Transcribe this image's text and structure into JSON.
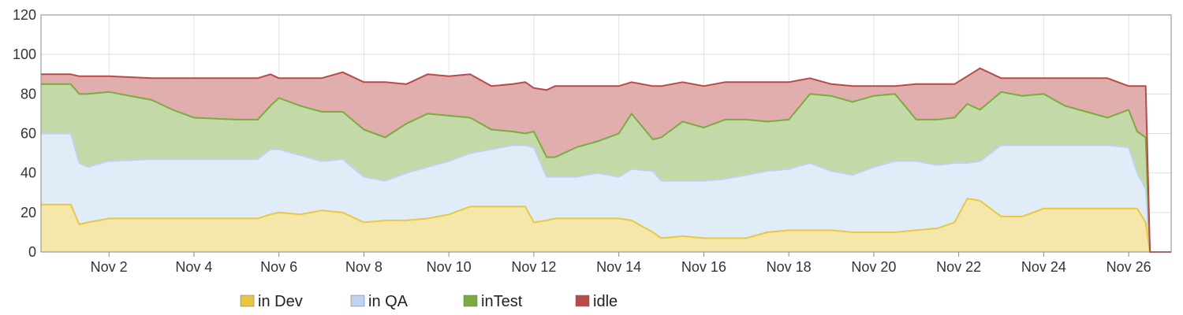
{
  "chart_data": {
    "type": "area",
    "stacked": true,
    "grid": true,
    "legend_position": "bottom",
    "ylim": [
      0,
      120
    ],
    "y_ticks": [
      0,
      20,
      40,
      60,
      80,
      100,
      120
    ],
    "y_tick_labels": [
      "0",
      "20",
      "40",
      "60",
      "80",
      "100",
      "120"
    ],
    "x_range": [
      0.4,
      27.0
    ],
    "x_ticks": [
      2,
      4,
      6,
      8,
      10,
      12,
      14,
      16,
      18,
      20,
      22,
      24,
      26
    ],
    "x_tick_labels": [
      "Nov 2",
      "Nov 4",
      "Nov 6",
      "Nov 8",
      "Nov 10",
      "Nov 12",
      "Nov 14",
      "Nov 16",
      "Nov 18",
      "Nov 20",
      "Nov 22",
      "Nov 24",
      "Nov 26"
    ],
    "x": [
      0.4,
      0.9,
      1.1,
      1.3,
      1.5,
      2.0,
      3.0,
      3.5,
      4.0,
      5.0,
      5.5,
      5.8,
      6.0,
      6.5,
      7.0,
      7.5,
      8.0,
      8.5,
      9.0,
      9.5,
      10.0,
      10.5,
      11.0,
      11.5,
      11.8,
      12.0,
      12.3,
      12.5,
      13.0,
      13.5,
      14.0,
      14.3,
      14.8,
      15.0,
      15.5,
      16.0,
      16.5,
      17.0,
      17.5,
      18.0,
      18.5,
      19.0,
      19.5,
      20.0,
      20.5,
      21.0,
      21.5,
      21.9,
      22.2,
      22.5,
      23.0,
      23.5,
      24.0,
      24.5,
      25.0,
      25.5,
      26.0,
      26.2,
      26.4,
      26.5,
      27.0
    ],
    "series": [
      {
        "name": "in Dev",
        "color": "#e8c840",
        "values": [
          24,
          24,
          24,
          14,
          15,
          17,
          17,
          17,
          17,
          17,
          17,
          19,
          20,
          19,
          21,
          20,
          15,
          16,
          16,
          17,
          19,
          23,
          23,
          23,
          23,
          15,
          16,
          17,
          17,
          17,
          17,
          16,
          10,
          7,
          8,
          7,
          7,
          7,
          10,
          11,
          11,
          11,
          10,
          10,
          10,
          11,
          12,
          15,
          27,
          26,
          18,
          18,
          22,
          22,
          22,
          22,
          22,
          22,
          15,
          0,
          0
        ]
      },
      {
        "name": "in QA",
        "color": "#bcd4f2",
        "values": [
          36,
          36,
          36,
          31,
          28,
          29,
          30,
          30,
          30,
          30,
          30,
          33,
          32,
          30,
          25,
          27,
          23,
          20,
          24,
          26,
          27,
          27,
          29,
          31,
          31,
          38,
          22,
          21,
          21,
          23,
          21,
          26,
          31,
          29,
          28,
          29,
          30,
          32,
          31,
          31,
          34,
          30,
          29,
          33,
          36,
          35,
          32,
          30,
          18,
          20,
          36,
          36,
          32,
          32,
          32,
          32,
          31,
          18,
          17,
          0,
          0
        ]
      },
      {
        "name": "inTest",
        "color": "#7aab3e",
        "values": [
          25,
          25,
          25,
          35,
          37,
          35,
          30,
          25,
          21,
          20,
          20,
          22,
          26,
          25,
          25,
          24,
          24,
          22,
          25,
          27,
          23,
          18,
          10,
          7,
          6,
          8,
          10,
          10,
          15,
          16,
          22,
          28,
          16,
          22,
          30,
          27,
          30,
          28,
          25,
          25,
          35,
          38,
          37,
          36,
          34,
          21,
          23,
          23,
          30,
          26,
          27,
          25,
          26,
          20,
          17,
          14,
          19,
          21,
          26,
          0,
          0
        ]
      },
      {
        "name": "idle",
        "color": "#b84a48",
        "values": [
          5,
          5,
          5,
          9,
          9,
          8,
          11,
          16,
          20,
          21,
          21,
          16,
          10,
          14,
          17,
          20,
          24,
          28,
          20,
          20,
          20,
          22,
          22,
          24,
          26,
          22,
          34,
          36,
          31,
          28,
          24,
          16,
          27,
          26,
          20,
          21,
          19,
          19,
          20,
          19,
          8,
          6,
          8,
          5,
          4,
          18,
          18,
          17,
          14,
          21,
          7,
          9,
          8,
          14,
          17,
          20,
          12,
          23,
          26,
          0,
          0
        ]
      }
    ]
  }
}
